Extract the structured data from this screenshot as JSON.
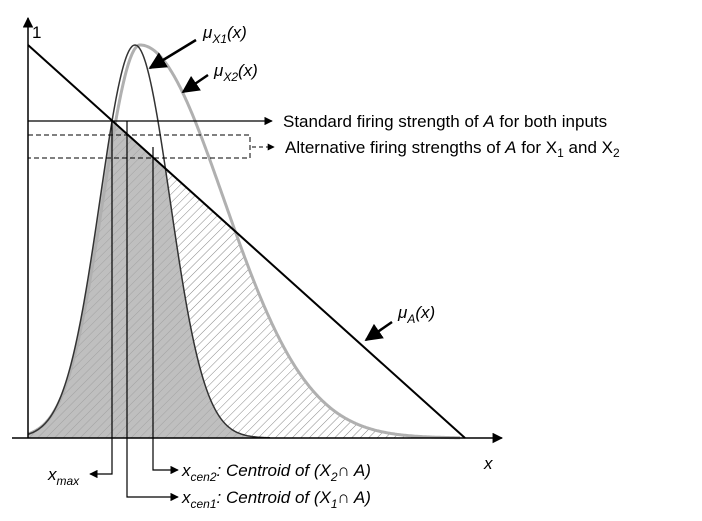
{
  "labels": {
    "one": "1",
    "x_axis": "x",
    "mu_x1": {
      "base": "μ",
      "sub": "X1",
      "rest": "(x)"
    },
    "mu_x2": {
      "base": "μ",
      "sub": "X2",
      "rest": "(x)"
    },
    "mu_a": {
      "base": "μ",
      "sub": "A",
      "rest": "(x)"
    },
    "standard": {
      "text": "Standard firing strength of ",
      "italic": "A",
      "rest": " for both inputs"
    },
    "alternative": {
      "text": "Alternative firing strengths of ",
      "italic": "A",
      "mid": " for X",
      "sub1": "1",
      "and": " and X",
      "sub2": "2"
    },
    "x_max": {
      "base": "x",
      "sub": "max"
    },
    "x_cen2": {
      "base": "x",
      "sub": "cen2",
      "rest": ": Centroid of (X",
      "sub2": "2",
      "tail": "∩ A)"
    },
    "x_cen1": {
      "base": "x",
      "sub": "cen1",
      "rest": ": Centroid of (X",
      "sub2": "1",
      "tail": "∩ A)"
    }
  }
}
